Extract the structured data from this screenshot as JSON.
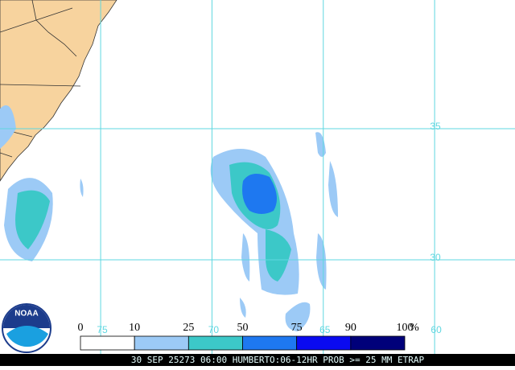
{
  "map": {
    "lon_range": [
      79.52,
      56.39
    ],
    "lat_range": [
      39.91,
      26.41
    ],
    "lat_lines": [
      {
        "value": 35,
        "label": "35"
      },
      {
        "value": 30,
        "label": "30"
      }
    ],
    "lon_lines": [
      {
        "value": 75,
        "label": "75"
      },
      {
        "value": 70,
        "label": "70"
      },
      {
        "value": 65,
        "label": "65"
      },
      {
        "value": 60,
        "label": "60"
      }
    ]
  },
  "legend": {
    "bins": [
      0,
      10,
      25,
      50,
      75,
      90,
      100
    ],
    "colors": [
      "#ffffff",
      "#9ccaf6",
      "#3cc8c8",
      "#1e78f0",
      "#0a0af0",
      "#00007a"
    ],
    "unit": "%"
  },
  "logo": "NOAA",
  "caption": "30 SEP 25273 06:00 HUMBERTO:06-12HR PROB >= 25 MM ETRAP"
}
